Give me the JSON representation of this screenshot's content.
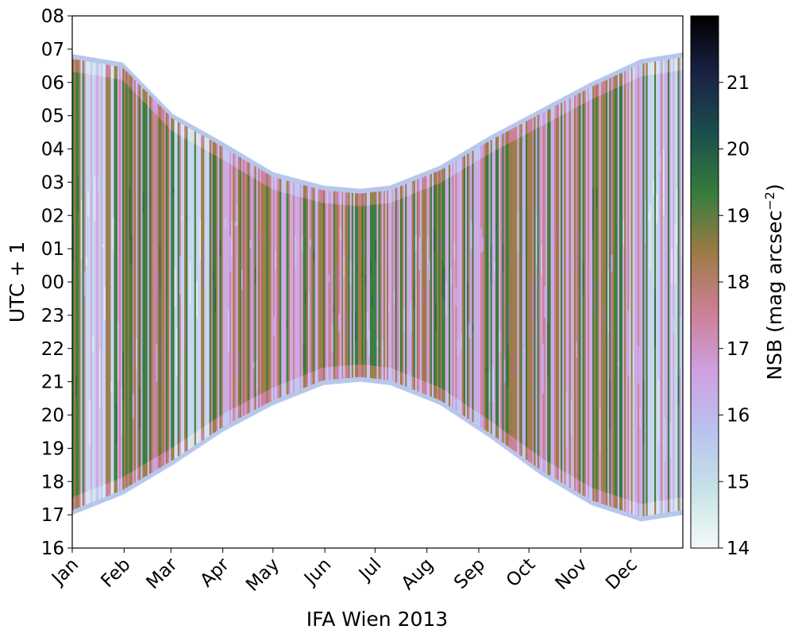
{
  "chart_data": {
    "type": "heatmap",
    "xlabel": "IFA Wien 2013",
    "ylabel": "UTC + 1",
    "colorbar_label": "NSB (mag arcsec",
    "colorbar_label_exponent": "−2",
    "colorbar_label_close": ")",
    "x_ticks": [
      "Jan",
      "Feb",
      "Mar",
      "Apr",
      "May",
      "Jun",
      "Jul",
      "Aug",
      "Sep",
      "Oct",
      "Nov",
      "Dec"
    ],
    "x_tick_days": [
      0,
      31,
      59,
      90,
      120,
      151,
      181,
      212,
      243,
      273,
      304,
      334
    ],
    "xlim_days": [
      0,
      365
    ],
    "y_ticks": [
      "16",
      "17",
      "18",
      "19",
      "20",
      "21",
      "22",
      "23",
      "00",
      "01",
      "02",
      "03",
      "04",
      "05",
      "06",
      "07",
      "08"
    ],
    "ylim_hours": [
      16,
      32
    ],
    "colorbar_ticks": [
      14,
      15,
      16,
      17,
      18,
      19,
      20,
      21
    ],
    "colorbar_range": [
      14,
      22
    ],
    "night_bounds": [
      {
        "day": 0,
        "dusk": 17.0,
        "dawn": 30.85
      },
      {
        "day": 30,
        "dusk": 17.6,
        "dawn": 30.6
      },
      {
        "day": 60,
        "dusk": 18.5,
        "dawn": 29.05
      },
      {
        "day": 90,
        "dusk": 19.5,
        "dawn": 28.2
      },
      {
        "day": 120,
        "dusk": 20.3,
        "dawn": 27.3
      },
      {
        "day": 150,
        "dusk": 20.9,
        "dawn": 26.9
      },
      {
        "day": 172,
        "dusk": 21.0,
        "dawn": 26.8
      },
      {
        "day": 190,
        "dusk": 20.9,
        "dawn": 26.9
      },
      {
        "day": 220,
        "dusk": 20.3,
        "dawn": 27.5
      },
      {
        "day": 250,
        "dusk": 19.3,
        "dawn": 28.4
      },
      {
        "day": 280,
        "dusk": 18.2,
        "dawn": 29.2
      },
      {
        "day": 310,
        "dusk": 17.3,
        "dawn": 30.0
      },
      {
        "day": 340,
        "dusk": 16.8,
        "dawn": 30.7
      },
      {
        "day": 365,
        "dusk": 17.0,
        "dawn": 30.9
      }
    ],
    "colormap": [
      "#f2faf7",
      "#c6e2e8",
      "#b9c2ee",
      "#cf9fe0",
      "#cc7f96",
      "#9d7b45",
      "#367c3c",
      "#1b4f4c",
      "#1a2346",
      "#000000"
    ],
    "grid": false
  }
}
